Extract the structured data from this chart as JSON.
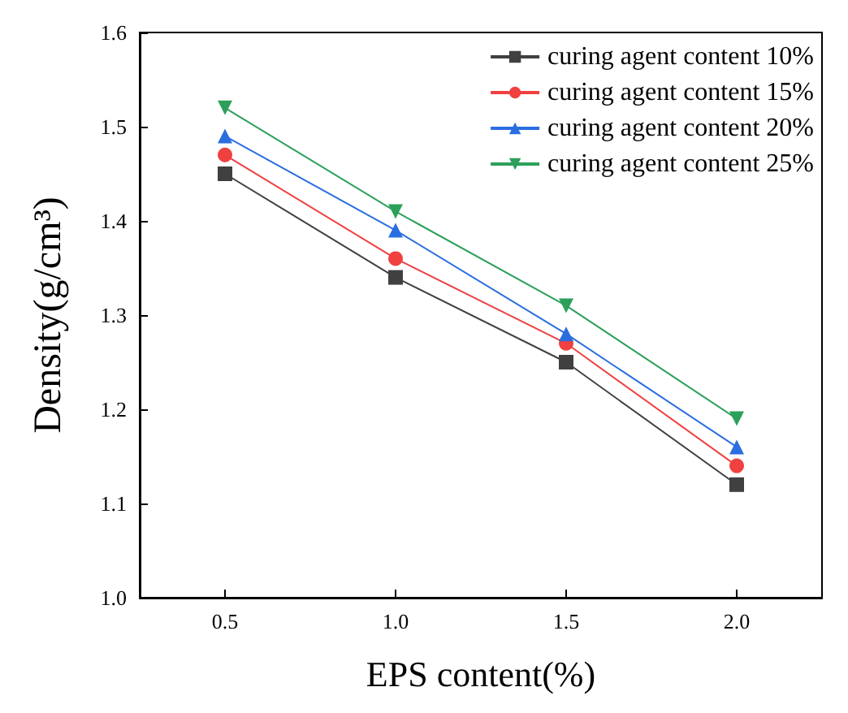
{
  "chart_data": {
    "type": "line",
    "xlabel": "EPS content(%)",
    "ylabel": "Density(g/cm³)",
    "x": [
      0.5,
      1.0,
      1.5,
      2.0
    ],
    "xlim": [
      0.25,
      2.25
    ],
    "xticks": [
      {
        "value": 0.5,
        "label": "0.5"
      },
      {
        "value": 1,
        "label": "1.0"
      },
      {
        "value": 1.5,
        "label": "1.5"
      },
      {
        "value": 2,
        "label": "2.0"
      }
    ],
    "ylim": [
      1.0,
      1.6
    ],
    "yticks": [
      {
        "value": 1,
        "label": "1.0"
      },
      {
        "value": 1.1,
        "label": "1.1"
      },
      {
        "value": 1.2,
        "label": "1.2"
      },
      {
        "value": 1.3,
        "label": "1.3"
      },
      {
        "value": 1.4,
        "label": "1.4"
      },
      {
        "value": 1.5,
        "label": "1.5"
      },
      {
        "value": 1.6,
        "label": "1.6"
      }
    ],
    "grid": false,
    "legend": "top right",
    "line_style": "solid",
    "series": [
      {
        "name": "curing agent content 10%",
        "color": "#404040",
        "marker": "square",
        "values": [
          1.45,
          1.34,
          1.25,
          1.12
        ]
      },
      {
        "name": "curing agent content 15%",
        "color": "#f04040",
        "marker": "circle",
        "values": [
          1.47,
          1.36,
          1.27,
          1.14
        ]
      },
      {
        "name": "curing agent content 20%",
        "color": "#2a6ee0",
        "marker": "triangle",
        "values": [
          1.49,
          1.39,
          1.28,
          1.16
        ]
      },
      {
        "name": "curing agent content 25%",
        "color": "#2ca05a",
        "marker": "triangle-down",
        "values": [
          1.52,
          1.41,
          1.31,
          1.19
        ]
      }
    ]
  }
}
